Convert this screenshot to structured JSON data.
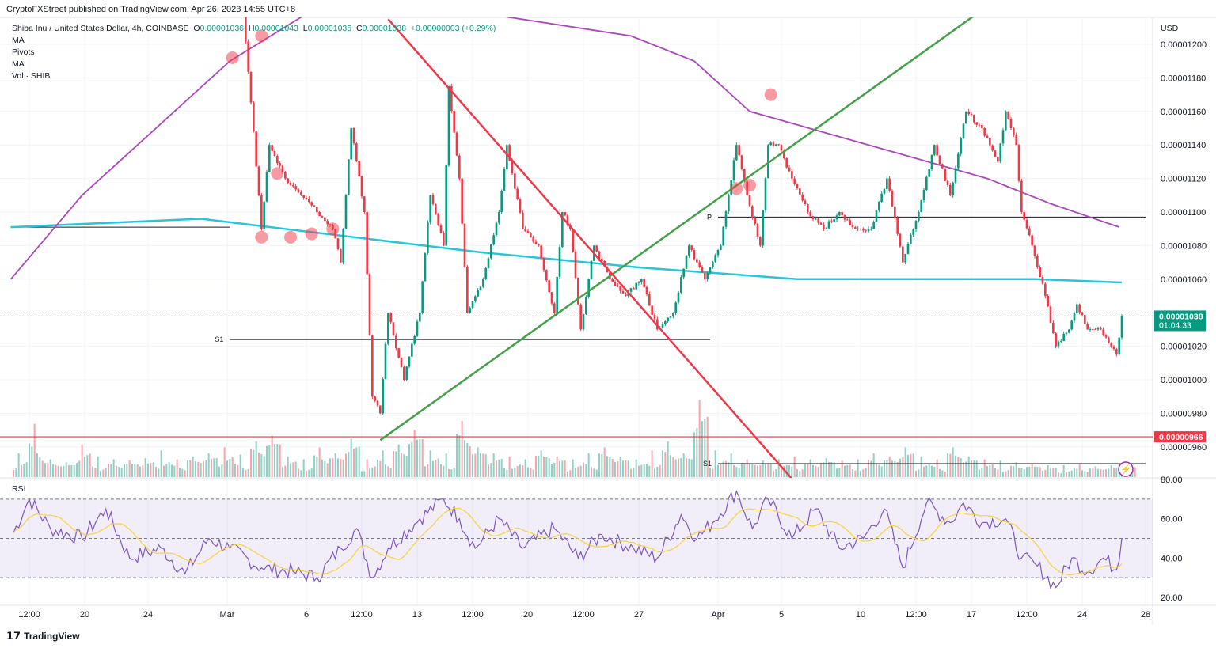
{
  "header": {
    "published": "CryptoFXStreet published on TradingView.com, Apr 26, 2023 14:55 UTC+8",
    "symbol": "Shiba Inu / United States Dollar, 4h, COINBASE",
    "o_label": "O",
    "o": "0.00001036",
    "h_label": "H",
    "h": "0.00001043",
    "l_label": "L",
    "l": "0.00001035",
    "c_label": "C",
    "c": "0.00001038",
    "change": "+0.00000003 (+0.29%)",
    "indicators": [
      "MA",
      "Pivots",
      "MA",
      "Vol · SHIB"
    ]
  },
  "footer": {
    "brand": "TradingView"
  },
  "colors": {
    "up": "#089981",
    "down": "#F23645",
    "ma_fast": "#26C6DA",
    "ma_slow": "#AB47BC",
    "trend_up": "#43A047",
    "trend_down": "#F23645",
    "rsi": "#7E57C2",
    "rsi_ma": "#F5D33B",
    "support": "#F23645"
  },
  "chart_data": {
    "type": "candlestick",
    "currency": "USD",
    "price_ticks": [
      "0.00001200",
      "0.00001180",
      "0.00001160",
      "0.00001140",
      "0.00001120",
      "0.00001100",
      "0.00001080",
      "0.00001060",
      "0.00001020",
      "0.00001000",
      "0.00000980",
      "0.00000960"
    ],
    "x_ticks": [
      [
        "2023-02-16T12:00",
        "12:00"
      ],
      [
        "2023-02-20T00:00",
        "20"
      ],
      [
        "2023-02-24T00:00",
        "24"
      ],
      [
        "2023-03-01T00:00",
        "Mar"
      ],
      [
        "2023-03-06T00:00",
        "6"
      ],
      [
        "2023-03-09T12:00",
        "12:00"
      ],
      [
        "2023-03-13T00:00",
        "13"
      ],
      [
        "2023-03-16T12:00",
        "12:00"
      ],
      [
        "2023-03-20T00:00",
        "20"
      ],
      [
        "2023-03-23T12:00",
        "12:00"
      ],
      [
        "2023-03-27T00:00",
        "27"
      ],
      [
        "2023-04-01T00:00",
        "Apr"
      ],
      [
        "2023-04-05T00:00",
        "5"
      ],
      [
        "2023-04-10T00:00",
        "10"
      ],
      [
        "2023-04-13T12:00",
        "12:00"
      ],
      [
        "2023-04-17T00:00",
        "17"
      ],
      [
        "2023-04-20T12:00",
        "12:00"
      ],
      [
        "2023-04-24T00:00",
        "24"
      ],
      [
        "2023-04-28T00:00",
        "28"
      ]
    ],
    "closes": [
      [
        "2023-03-01T00:00",
        1.235e-05
      ],
      [
        "2023-03-02T00:00",
        1.222e-05
      ],
      [
        "2023-03-03T04:00",
        1.09e-05
      ],
      [
        "2023-03-03T16:00",
        1.14e-05
      ],
      [
        "2023-03-04T16:00",
        1.12e-05
      ],
      [
        "2023-03-05T16:00",
        1.11e-05
      ],
      [
        "2023-03-06T16:00",
        1.1e-05
      ],
      [
        "2023-03-07T16:00",
        1.09e-05
      ],
      [
        "2023-03-08T04:00",
        1.07e-05
      ],
      [
        "2023-03-08T20:00",
        1.15e-05
      ],
      [
        "2023-03-09T16:00",
        1.1e-05
      ],
      [
        "2023-03-10T04:00",
        9.9e-06
      ],
      [
        "2023-03-10T16:00",
        9.8e-06
      ],
      [
        "2023-03-11T04:00",
        1.04e-05
      ],
      [
        "2023-03-12T04:00",
        1e-05
      ],
      [
        "2023-03-13T04:00",
        1.04e-05
      ],
      [
        "2023-03-13T20:00",
        1.11e-05
      ],
      [
        "2023-03-14T16:00",
        1.08e-05
      ],
      [
        "2023-03-15T00:00",
        1.175e-05
      ],
      [
        "2023-03-15T16:00",
        1.12e-05
      ],
      [
        "2023-03-16T04:00",
        1.04e-05
      ],
      [
        "2023-03-17T04:00",
        1.06e-05
      ],
      [
        "2023-03-18T04:00",
        1.1e-05
      ],
      [
        "2023-03-18T16:00",
        1.14e-05
      ],
      [
        "2023-03-19T16:00",
        1.09e-05
      ],
      [
        "2023-03-20T16:00",
        1.08e-05
      ],
      [
        "2023-03-21T16:00",
        1.04e-05
      ],
      [
        "2023-03-22T04:00",
        1.1e-05
      ],
      [
        "2023-03-22T16:00",
        1.09e-05
      ],
      [
        "2023-03-23T08:00",
        1.03e-05
      ],
      [
        "2023-03-24T04:00",
        1.08e-05
      ],
      [
        "2023-03-25T04:00",
        1.06e-05
      ],
      [
        "2023-03-26T04:00",
        1.05e-05
      ],
      [
        "2023-03-27T04:00",
        1.06e-05
      ],
      [
        "2023-03-28T04:00",
        1.03e-05
      ],
      [
        "2023-03-29T04:00",
        1.04e-05
      ],
      [
        "2023-03-30T04:00",
        1.08e-05
      ],
      [
        "2023-03-31T04:00",
        1.06e-05
      ],
      [
        "2023-04-01T04:00",
        1.08e-05
      ],
      [
        "2023-04-02T04:00",
        1.14e-05
      ],
      [
        "2023-04-02T20:00",
        1.11e-05
      ],
      [
        "2023-04-03T16:00",
        1.08e-05
      ],
      [
        "2023-04-04T04:00",
        1.14e-05
      ],
      [
        "2023-04-04T20:00",
        1.14e-05
      ],
      [
        "2023-04-05T16:00",
        1.12e-05
      ],
      [
        "2023-04-06T16:00",
        1.1e-05
      ],
      [
        "2023-04-07T16:00",
        1.09e-05
      ],
      [
        "2023-04-08T16:00",
        1.1e-05
      ],
      [
        "2023-04-09T16:00",
        1.09e-05
      ],
      [
        "2023-04-10T16:00",
        1.09e-05
      ],
      [
        "2023-04-11T16:00",
        1.12e-05
      ],
      [
        "2023-04-12T16:00",
        1.07e-05
      ],
      [
        "2023-04-13T16:00",
        1.1e-05
      ],
      [
        "2023-04-14T16:00",
        1.14e-05
      ],
      [
        "2023-04-15T16:00",
        1.11e-05
      ],
      [
        "2023-04-16T16:00",
        1.16e-05
      ],
      [
        "2023-04-17T16:00",
        1.15e-05
      ],
      [
        "2023-04-18T16:00",
        1.13e-05
      ],
      [
        "2023-04-19T04:00",
        1.16e-05
      ],
      [
        "2023-04-19T20:00",
        1.14e-05
      ],
      [
        "2023-04-20T04:00",
        1.1e-05
      ],
      [
        "2023-04-20T20:00",
        1.08e-05
      ],
      [
        "2023-04-21T16:00",
        1.05e-05
      ],
      [
        "2023-04-22T08:00",
        1.02e-05
      ],
      [
        "2023-04-23T04:00",
        1.03e-05
      ],
      [
        "2023-04-23T16:00",
        1.045e-05
      ],
      [
        "2023-04-24T08:00",
        1.03e-05
      ],
      [
        "2023-04-25T04:00",
        1.03e-05
      ],
      [
        "2023-04-26T04:00",
        1.015e-05
      ],
      [
        "2023-04-26T12:00",
        1.038e-05
      ]
    ],
    "ma_fast": [
      [
        "2023-02-15T08:00",
        1.091e-05
      ],
      [
        "2023-02-27T08:00",
        1.096e-05
      ],
      [
        "2023-03-09T00:00",
        1.085e-05
      ],
      [
        "2023-03-17T00:00",
        1.076e-05
      ],
      [
        "2023-03-27T00:00",
        1.067e-05
      ],
      [
        "2023-04-06T00:00",
        1.06e-05
      ],
      [
        "2023-04-21T00:00",
        1.06e-05
      ],
      [
        "2023-04-26T12:00",
        1.058e-05
      ]
    ],
    "ma_slow": [
      [
        "2023-02-15T08:00",
        1.06e-05
      ],
      [
        "2023-02-19T20:00",
        1.11e-05
      ],
      [
        "2023-03-01T04:00",
        1.19e-05
      ],
      [
        "2023-03-06T16:00",
        1.222e-05
      ],
      [
        "2023-03-17T12:00",
        1.218e-05
      ],
      [
        "2023-03-26T12:00",
        1.205e-05
      ],
      [
        "2023-03-30T12:00",
        1.19e-05
      ],
      [
        "2023-04-03T00:00",
        1.16e-05
      ],
      [
        "2023-04-10T12:00",
        1.14e-05
      ],
      [
        "2023-04-18T00:00",
        1.12e-05
      ],
      [
        "2023-04-22T00:00",
        1.105e-05
      ],
      [
        "2023-04-26T08:00",
        1.091e-05
      ]
    ],
    "trendlines": [
      {
        "color": "trend_up",
        "from": [
          "2023-03-10T16:00",
          9.64e-06
        ],
        "to": [
          "2023-04-17T04:00",
          1.217e-05
        ]
      },
      {
        "color": "trend_down",
        "from": [
          "2023-03-11T04:00",
          1.215e-05
        ],
        "to": [
          "2023-04-05T16:00",
          9.41e-06
        ]
      }
    ],
    "levels": [
      {
        "label": "",
        "price": 1.091e-05,
        "from": "2023-02-15T08:00",
        "to": "2023-03-01T04:00"
      },
      {
        "label": "S1",
        "price": 1.024e-05,
        "from": "2023-03-01T04:00",
        "to": "2023-03-31T12:00"
      },
      {
        "label": "P",
        "price": 1.097e-05,
        "from": "2023-04-01T00:00",
        "to": "2023-04-28T00:00"
      },
      {
        "label": "S1",
        "price": 9.5e-06,
        "from": "2023-04-01T00:00",
        "to": "2023-04-28T00:00"
      }
    ],
    "support_line": {
      "price": 9.66e-06,
      "label": "0.00000966"
    },
    "last_price": {
      "price": 1.038e-05,
      "label": "0.00001038",
      "countdown": "01:04:33"
    },
    "markers": [
      [
        "2023-03-01T08:00",
        1.192e-05
      ],
      [
        "2023-03-03T04:00",
        1.205e-05
      ],
      [
        "2023-03-04T04:00",
        1.123e-05
      ],
      [
        "2023-03-03T04:00",
        1.085e-05
      ],
      [
        "2023-03-05T00:00",
        1.085e-05
      ],
      [
        "2023-03-06T08:00",
        1.087e-05
      ],
      [
        "2023-03-07T16:00",
        1.09e-05
      ],
      [
        "2023-04-02T04:00",
        1.114e-05
      ],
      [
        "2023-04-03T00:00",
        1.116e-05
      ],
      [
        "2023-04-04T08:00",
        1.17e-05
      ]
    ],
    "volume_daily_start": "2023-02-15T12:00",
    "volume_daily": [
      40,
      90,
      30,
      25,
      55,
      35,
      30,
      28,
      32,
      45,
      30,
      35,
      40,
      50,
      38,
      60,
      70,
      35,
      30,
      50,
      40,
      65,
      30,
      45,
      55,
      80,
      45,
      40,
      95,
      50,
      40,
      35,
      30,
      45,
      35,
      30,
      40,
      50,
      35,
      30,
      45,
      60,
      40,
      130,
      45,
      40,
      30,
      28,
      30,
      35,
      30,
      32,
      28,
      30,
      40,
      35,
      50,
      35,
      30,
      50,
      35,
      30,
      28,
      25,
      22,
      20,
      20,
      22,
      18,
      20,
      25
    ],
    "rsi": {
      "label": "RSI",
      "ticks": [
        "80.00",
        "60.00",
        "40.00",
        "20.00"
      ],
      "upper": 70,
      "lower": 30,
      "mid": 50,
      "values": [
        [
          "2023-02-15T08:00",
          50
        ],
        [
          "2023-02-16T12:00",
          70
        ],
        [
          "2023-02-17T20:00",
          55
        ],
        [
          "2023-02-19T20:00",
          50
        ],
        [
          "2023-02-21T08:00",
          65
        ],
        [
          "2023-02-22T20:00",
          40
        ],
        [
          "2023-02-24T20:00",
          45
        ],
        [
          "2023-02-26T08:00",
          32
        ],
        [
          "2023-02-27T20:00",
          50
        ],
        [
          "2023-03-01T04:00",
          45
        ],
        [
          "2023-03-03T04:00",
          35
        ],
        [
          "2023-03-05T04:00",
          33
        ],
        [
          "2023-03-06T16:00",
          30
        ],
        [
          "2023-03-08T04:00",
          45
        ],
        [
          "2023-03-09T04:00",
          55
        ],
        [
          "2023-03-10T04:00",
          30
        ],
        [
          "2023-03-11T04:00",
          45
        ],
        [
          "2023-03-13T04:00",
          60
        ],
        [
          "2023-03-14T16:00",
          70
        ],
        [
          "2023-03-15T16:00",
          60
        ],
        [
          "2023-03-16T16:00",
          45
        ],
        [
          "2023-03-18T04:00",
          60
        ],
        [
          "2023-03-19T16:00",
          45
        ],
        [
          "2023-03-21T16:00",
          55
        ],
        [
          "2023-03-23T04:00",
          40
        ],
        [
          "2023-03-24T16:00",
          52
        ],
        [
          "2023-03-26T16:00",
          45
        ],
        [
          "2023-03-28T04:00",
          40
        ],
        [
          "2023-03-29T16:00",
          62
        ],
        [
          "2023-03-30T16:00",
          50
        ],
        [
          "2023-03-31T16:00",
          58
        ],
        [
          "2023-04-02T04:00",
          74
        ],
        [
          "2023-04-03T04:00",
          55
        ],
        [
          "2023-04-04T04:00",
          70
        ],
        [
          "2023-04-05T16:00",
          50
        ],
        [
          "2023-04-07T04:00",
          65
        ],
        [
          "2023-04-08T16:00",
          45
        ],
        [
          "2023-04-10T04:00",
          50
        ],
        [
          "2023-04-11T12:00",
          65
        ],
        [
          "2023-04-12T16:00",
          35
        ],
        [
          "2023-04-14T04:00",
          68
        ],
        [
          "2023-04-15T16:00",
          58
        ],
        [
          "2023-04-16T12:00",
          68
        ],
        [
          "2023-04-17T16:00",
          58
        ],
        [
          "2023-04-19T04:00",
          60
        ],
        [
          "2023-04-20T04:00",
          40
        ],
        [
          "2023-04-21T04:00",
          36
        ],
        [
          "2023-04-22T08:00",
          25
        ],
        [
          "2023-04-23T08:00",
          40
        ],
        [
          "2023-04-24T08:00",
          33
        ],
        [
          "2023-04-25T08:00",
          40
        ],
        [
          "2023-04-26T04:00",
          34
        ],
        [
          "2023-04-26T12:00",
          50
        ]
      ]
    }
  }
}
